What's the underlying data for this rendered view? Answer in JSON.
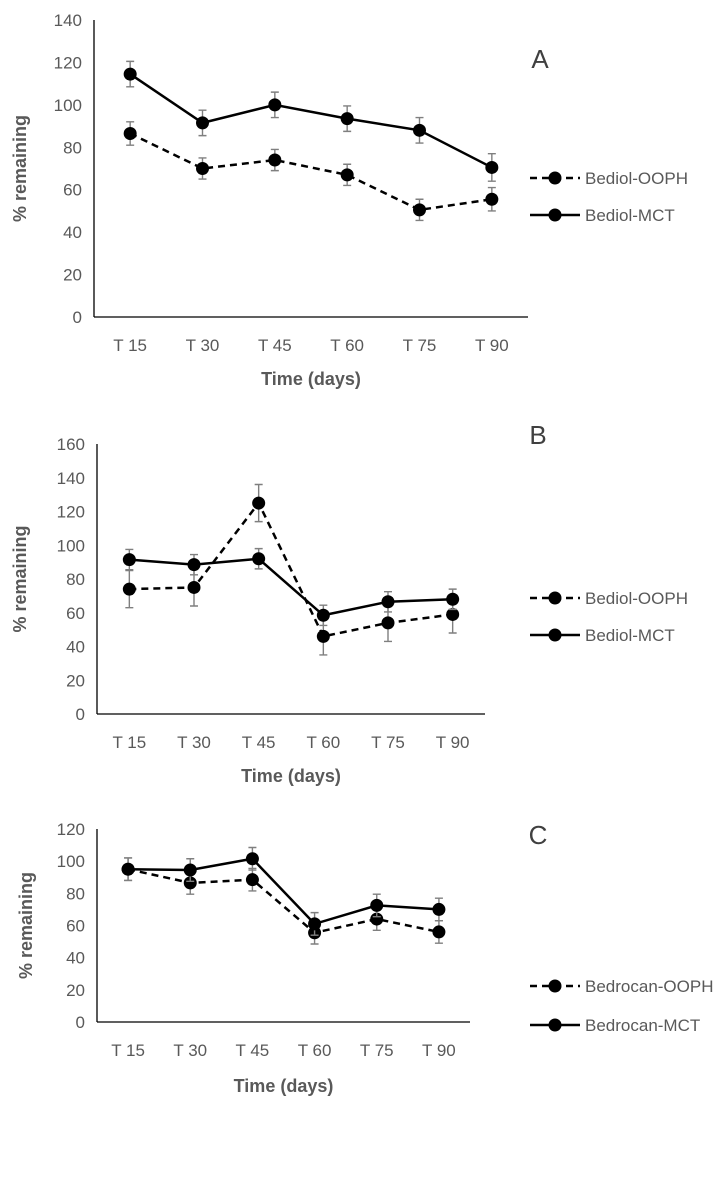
{
  "chart_data": [
    {
      "type": "line",
      "panel_label": "A",
      "xlabel": "Time (days)",
      "ylabel": "% remaining",
      "categories": [
        "T 15",
        "T 30",
        "T 45",
        "T 60",
        "T 75",
        "T 90"
      ],
      "ylim": [
        0,
        140
      ],
      "yticks": [
        0,
        20,
        40,
        60,
        80,
        100,
        120,
        140
      ],
      "grid": false,
      "legend_position": "right",
      "series": [
        {
          "name": "Bediol-OOPH",
          "style": "dashed",
          "values": [
            86.5,
            70,
            74,
            67,
            50.5,
            55.5
          ],
          "errors": [
            5.5,
            5,
            5,
            5,
            5,
            5.5
          ]
        },
        {
          "name": "Bediol-MCT",
          "style": "solid",
          "values": [
            114.5,
            91.5,
            100,
            93.5,
            88,
            70.5
          ],
          "errors": [
            6,
            6,
            6,
            6,
            6,
            6.5
          ]
        }
      ]
    },
    {
      "type": "line",
      "panel_label": "B",
      "xlabel": "Time (days)",
      "ylabel": "% remaining",
      "categories": [
        "T 15",
        "T 30",
        "T 45",
        "T 60",
        "T 75",
        "T 90"
      ],
      "ylim": [
        0,
        160
      ],
      "yticks": [
        0,
        20,
        40,
        60,
        80,
        100,
        120,
        140,
        160
      ],
      "grid": false,
      "legend_position": "right",
      "series": [
        {
          "name": "Bediol-OOPH",
          "style": "dashed",
          "values": [
            74,
            75,
            125,
            46,
            54,
            59
          ],
          "errors": [
            11,
            11,
            11,
            11,
            11,
            11
          ]
        },
        {
          "name": "Bediol-MCT",
          "style": "solid",
          "values": [
            91.5,
            88.5,
            92,
            58.5,
            66.5,
            68
          ],
          "errors": [
            6,
            6,
            6,
            6,
            6,
            6
          ]
        }
      ]
    },
    {
      "type": "line",
      "panel_label": "C",
      "xlabel": "Time (days)",
      "ylabel": "% remaining",
      "categories": [
        "T 15",
        "T 30",
        "T 45",
        "T 60",
        "T 75",
        "T 90"
      ],
      "ylim": [
        0,
        120
      ],
      "yticks": [
        0,
        20,
        40,
        60,
        80,
        100,
        120
      ],
      "grid": false,
      "legend_position": "right",
      "series": [
        {
          "name": "Bedrocan-OOPH",
          "style": "dashed",
          "values": [
            95,
            86.5,
            88.5,
            55.5,
            64,
            56
          ],
          "errors": [
            7,
            7,
            7,
            7,
            7,
            7
          ]
        },
        {
          "name": "Bedrocan-MCT",
          "style": "solid",
          "values": [
            95,
            94.5,
            101.5,
            61,
            72.5,
            70
          ],
          "errors": [
            7,
            7,
            7,
            7,
            7,
            7
          ]
        }
      ]
    }
  ]
}
